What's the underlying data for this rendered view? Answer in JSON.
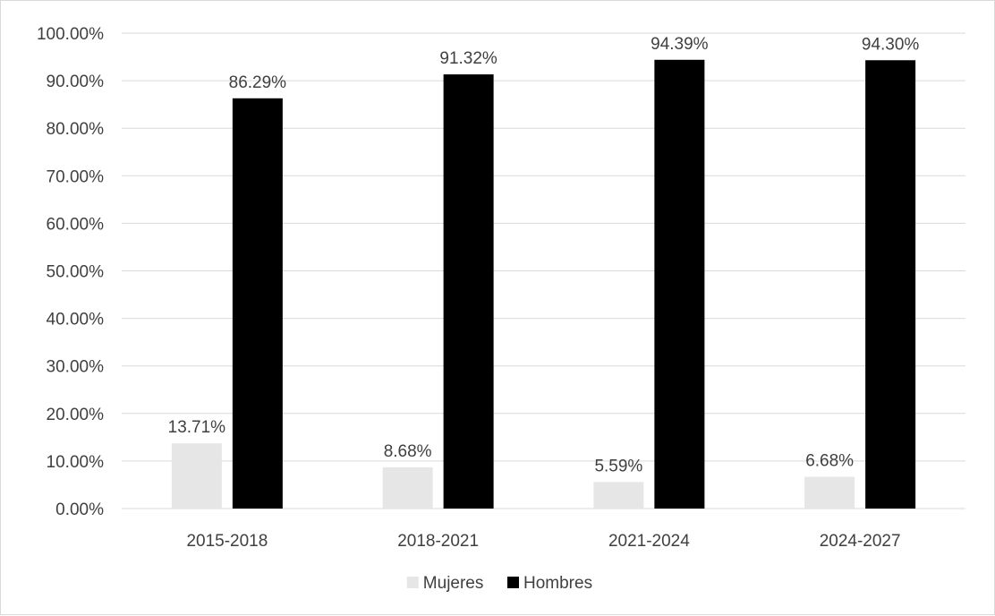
{
  "chart_data": {
    "type": "bar",
    "categories": [
      "2015-2018",
      "2018-2021",
      "2021-2024",
      "2024-2027"
    ],
    "series": [
      {
        "name": "Mujeres",
        "values": [
          13.71,
          8.68,
          5.59,
          6.68
        ],
        "labels": [
          "13.71%",
          "8.68%",
          "5.59%",
          "6.68%"
        ],
        "color": "#e7e6e6"
      },
      {
        "name": "Hombres",
        "values": [
          86.29,
          91.32,
          94.39,
          94.3
        ],
        "labels": [
          "86.29%",
          "91.32%",
          "94.39%",
          "94.30%"
        ],
        "color": "#000000"
      }
    ],
    "y_ticks": [
      "0.00%",
      "10.00%",
      "20.00%",
      "30.00%",
      "40.00%",
      "50.00%",
      "60.00%",
      "70.00%",
      "80.00%",
      "90.00%",
      "100.00%"
    ],
    "ylim": [
      0,
      100
    ],
    "grid": true,
    "legend_position": "bottom",
    "gridline_color": "#d9d9d9"
  }
}
